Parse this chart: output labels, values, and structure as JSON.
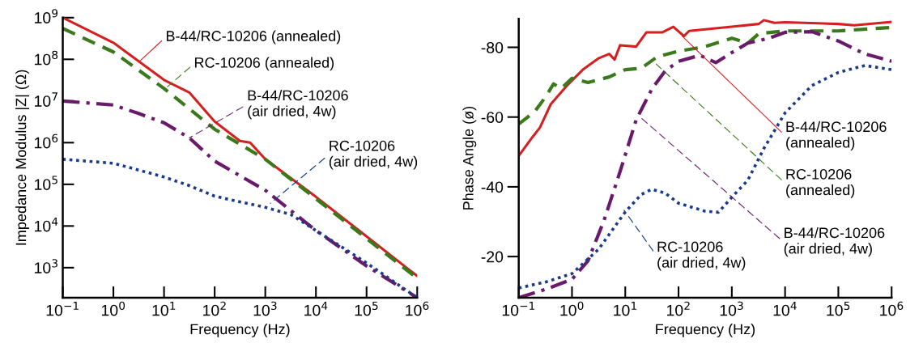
{
  "chart_data": [
    {
      "type": "line",
      "xlabel": "Frequency (Hz)",
      "ylabel": "Impedance Modulus |Z| (Ω)",
      "log": "xy",
      "grid": false,
      "legend": false,
      "xlim": [
        0.1,
        1000000
      ],
      "xticks": [
        {
          "value": 0.1,
          "label": "10$^{−1}$"
        },
        {
          "value": 1,
          "label": "10$^{0}$"
        },
        {
          "value": 10,
          "label": "10$^{1}$"
        },
        {
          "value": 100,
          "label": "10$^{2}$"
        },
        {
          "value": 1000,
          "label": "10$^{3}$"
        },
        {
          "value": 10000,
          "label": "10$^{4}$"
        },
        {
          "value": 100000,
          "label": "10$^{5}$"
        },
        {
          "value": 1000000,
          "label": "10$^{6}$"
        }
      ],
      "ylim": [
        190,
        1000000000
      ],
      "yticks": [
        {
          "value": 1000,
          "label": "10$^{3}$"
        },
        {
          "value": 10000,
          "label": "10$^{4}$"
        },
        {
          "value": 100000,
          "label": "10$^{5}$"
        },
        {
          "value": 1000000,
          "label": "10$^{6}$"
        },
        {
          "value": 10000000,
          "label": "10$^{7}$"
        },
        {
          "value": 100000000,
          "label": "10$^{8}$"
        },
        {
          "value": 1000000000,
          "label": "10$^{9}$"
        }
      ],
      "series": [
        {
          "color": "#d42020",
          "line_style": "solid",
          "x": [
            0.1,
            1,
            10,
            31.6,
            100,
            316,
            500,
            1000,
            10000,
            100000,
            1000000
          ],
          "values": [
            1000000000,
            250000000,
            32000000,
            16000000,
            3200000,
            1100000,
            1000000,
            400000,
            50000,
            5600,
            630
          ]
        },
        {
          "color": "#3a7a1a",
          "line_style": "dashed",
          "x": [
            0.1,
            1,
            10,
            100,
            1000,
            10000,
            100000,
            1000000
          ],
          "values": [
            550000000,
            150000000,
            20000000,
            2100000,
            400000,
            45000,
            5000,
            560
          ]
        },
        {
          "color": "#6a1a6a",
          "line_style": "dashdot",
          "x": [
            0.1,
            1,
            3.16,
            10,
            31.6,
            100,
            1000,
            10000,
            100000,
            1000000
          ],
          "values": [
            10000000,
            8000000,
            5000000,
            3000000,
            1300000,
            360000,
            72000,
            7800,
            1100,
            190
          ]
        },
        {
          "color": "#1a3a8a",
          "line_style": "dotted",
          "x": [
            0.1,
            1,
            3.16,
            10,
            31.6,
            100,
            316,
            1000,
            3160,
            10000,
            100000,
            1000000
          ],
          "values": [
            400000,
            320000,
            220000,
            150000,
            93000,
            52000,
            38000,
            28000,
            19000,
            7800,
            1300,
            190
          ]
        }
      ],
      "annotations": [
        {
          "text": "B-44/RC-10206 (annealed)",
          "x": 3.4,
          "y": 93000000
        },
        {
          "text": "RC-10206 (annealed)",
          "x": 11.7,
          "y": 22000000
        },
        {
          "text": "B-44/RC-10206\n(air dried, 4w)",
          "x": 31.6,
          "y": 1300000
        },
        {
          "text": "RC-10206\n(air dried, 4w)",
          "x": 1260,
          "y": 35000
        }
      ]
    },
    {
      "type": "line",
      "xlabel": "Frequency (Hz)",
      "ylabel": "Phase Angle (ø)",
      "log": "x",
      "grid": false,
      "legend": false,
      "xlim": [
        0.1,
        1000000
      ],
      "xticks": [
        {
          "value": 0.1,
          "label": "10$^{−1}$"
        },
        {
          "value": 1,
          "label": "10$^{0}$"
        },
        {
          "value": 10,
          "label": "10$^{1}$"
        },
        {
          "value": 100,
          "label": "10$^{2}$"
        },
        {
          "value": 1000,
          "label": "10$^{3}$"
        },
        {
          "value": 10000,
          "label": "10$^{4}$"
        },
        {
          "value": 100000,
          "label": "10$^{5}$"
        },
        {
          "value": 1000000,
          "label": "10$^{6}$"
        }
      ],
      "ylim": [
        -8.2,
        -88.2
      ],
      "yticks": [
        -80,
        -60,
        -40,
        -20
      ],
      "series": [
        {
          "color": "#d42020",
          "line_style": "solid",
          "x": [
            0.1,
            0.18,
            0.25,
            0.4,
            0.8,
            1.6,
            3.2,
            5,
            6.3,
            8,
            16,
            25,
            50,
            80,
            126,
            158,
            1000,
            3200,
            4000,
            6300,
            10000,
            100000,
            200000,
            1000000
          ],
          "values": [
            -48.9,
            -54.2,
            -57,
            -63.7,
            -69,
            -73.6,
            -76.9,
            -78.1,
            -76.5,
            -80.6,
            -80.2,
            -84.3,
            -84.3,
            -85.9,
            -83.2,
            -84.7,
            -85.9,
            -86.7,
            -87.8,
            -87,
            -87.2,
            -86.7,
            -86.3,
            -87.3
          ]
        },
        {
          "color": "#3a7a1a",
          "line_style": "dashed",
          "x": [
            0.1,
            0.2,
            0.32,
            0.45,
            0.63,
            1,
            2,
            5,
            10,
            20,
            40,
            100,
            316,
            1000,
            2000,
            3200,
            10000,
            100000,
            1000000
          ],
          "values": [
            -58,
            -61.6,
            -65.8,
            -69.5,
            -68.2,
            -71.1,
            -69.9,
            -71.5,
            -73.6,
            -74,
            -77.3,
            -78.9,
            -80.2,
            -82.6,
            -81.2,
            -83.9,
            -84.7,
            -84.7,
            -85.7
          ]
        },
        {
          "color": "#6a1a6a",
          "line_style": "dashdot",
          "x": [
            0.1,
            0.32,
            1,
            2,
            4,
            8,
            16,
            32,
            56,
            100,
            251,
            500,
            1000,
            2000,
            5000,
            10000,
            31600,
            100000,
            316000,
            1000000
          ],
          "values": [
            -8.2,
            -10.6,
            -13.5,
            -18.8,
            -30.4,
            -44.4,
            -59.2,
            -68.2,
            -73.2,
            -76,
            -77.7,
            -75.6,
            -78.5,
            -81.2,
            -82.6,
            -84.3,
            -84.5,
            -81.8,
            -78.1,
            -76
          ]
        },
        {
          "color": "#1a3a8a",
          "line_style": "dotted",
          "x": [
            0.1,
            0.32,
            1,
            3.16,
            10,
            20,
            31.6,
            56,
            100,
            316,
            562,
            1000,
            2000,
            4000,
            10000,
            31600,
            100000,
            316000,
            1000000
          ],
          "values": [
            -11,
            -12.7,
            -15.1,
            -22.1,
            -32.8,
            -37.8,
            -39.3,
            -38.2,
            -35.3,
            -33,
            -32.7,
            -37,
            -41.9,
            -51,
            -61.2,
            -69,
            -72.8,
            -74.8,
            -73.6
          ]
        }
      ],
      "annotations": [
        {
          "text": "B-44/RC-10206\n(annealed)",
          "x": 117,
          "y": -83.2
        },
        {
          "text": "RC-10206\n(annealed)",
          "x": 38,
          "y": -75.2
        },
        {
          "text": "B-44/RC-10206\n(air dried, 4w)",
          "x": 19,
          "y": -60
        },
        {
          "text": "RC-10206\n(air dried, 4w)",
          "x": 9.5,
          "y": -33.3
        }
      ]
    }
  ]
}
